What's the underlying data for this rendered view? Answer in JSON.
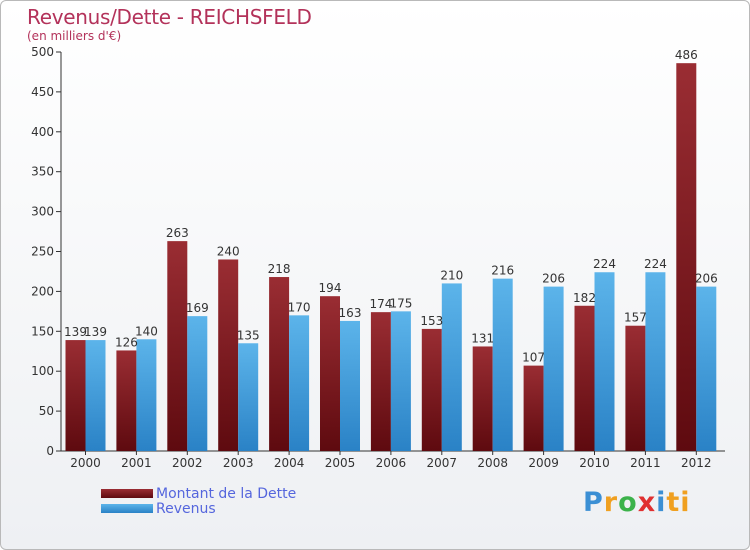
{
  "header": {
    "title": "Revenus/Dette - REICHSFELD",
    "subtitle": "(en milliers d'€)"
  },
  "colors": {
    "title": "#b3325a",
    "debt_top": "#9a2d33",
    "debt_bottom": "#5e0a0f",
    "revenue_top": "#5cb4ea",
    "revenue_bottom": "#2a82c6",
    "legend_text": "#5566dd"
  },
  "legend": {
    "debt_label": "Montant de la Dette",
    "revenue_label": "Revenus"
  },
  "brand": {
    "letters": [
      "P",
      "r",
      "o",
      "x",
      "i",
      "ti"
    ]
  },
  "chart_data": {
    "type": "bar",
    "title": "Revenus/Dette - REICHSFELD",
    "subtitle": "(en milliers d'€)",
    "xlabel": "",
    "ylabel": "",
    "ylim": [
      0,
      500
    ],
    "yticks": [
      0,
      50,
      100,
      150,
      200,
      250,
      300,
      350,
      400,
      450,
      500
    ],
    "grid": false,
    "legend_position": "bottom-left",
    "categories": [
      "2000",
      "2001",
      "2002",
      "2003",
      "2004",
      "2005",
      "2006",
      "2007",
      "2008",
      "2009",
      "2010",
      "2011",
      "2012"
    ],
    "series": [
      {
        "name": "Montant de la Dette",
        "values": [
          139,
          126,
          263,
          240,
          218,
          194,
          174,
          153,
          131,
          107,
          182,
          157,
          486
        ]
      },
      {
        "name": "Revenus",
        "values": [
          139,
          140,
          169,
          135,
          170,
          163,
          175,
          210,
          216,
          206,
          224,
          224,
          206
        ]
      }
    ]
  }
}
